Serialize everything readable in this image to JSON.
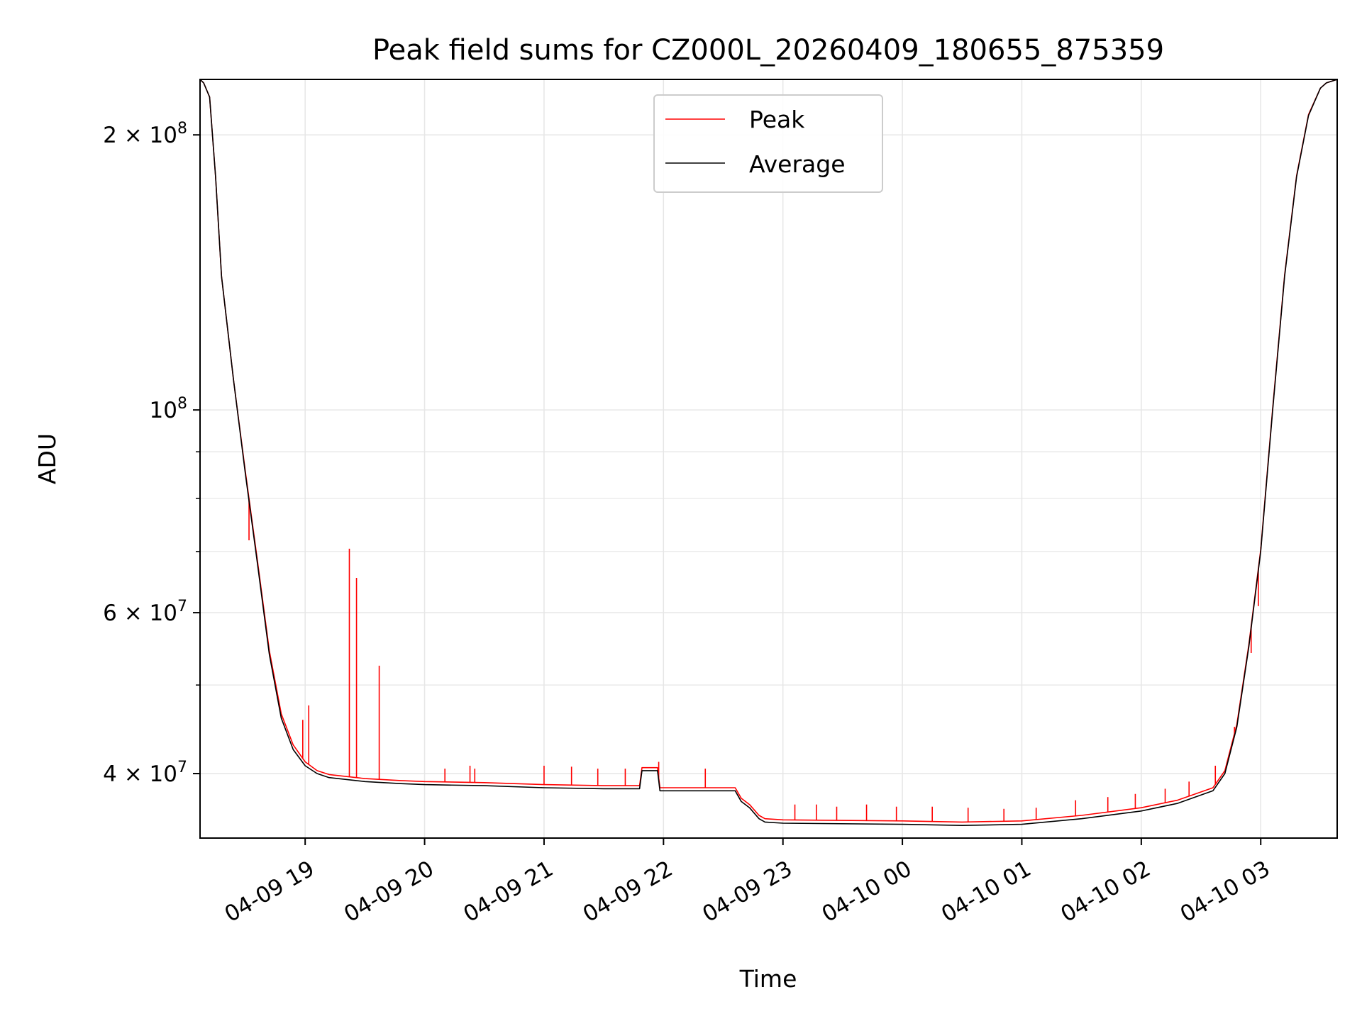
{
  "chart_data": {
    "type": "line",
    "title": "Peak field sums for CZ000L_20260409_180655_875359",
    "xlabel": "Time",
    "ylabel": "ADU",
    "yscale": "log",
    "grid": true,
    "legend_position": "top-center",
    "colors": {
      "Peak": "#ff0000",
      "Average": "#000000",
      "grid": "#e6e6e6"
    },
    "x_unit": "hours since 2026-04-09 18:00",
    "xlim": [
      0.12,
      9.64
    ],
    "ylim": [
      34000000,
      230000000
    ],
    "x_ticks": [
      {
        "value": 1,
        "label": "04-09 19"
      },
      {
        "value": 2,
        "label": "04-09 20"
      },
      {
        "value": 3,
        "label": "04-09 21"
      },
      {
        "value": 4,
        "label": "04-09 22"
      },
      {
        "value": 5,
        "label": "04-09 23"
      },
      {
        "value": 6,
        "label": "04-10 00"
      },
      {
        "value": 7,
        "label": "04-10 01"
      },
      {
        "value": 8,
        "label": "04-10 02"
      },
      {
        "value": 9,
        "label": "04-10 03"
      }
    ],
    "y_ticks": [
      {
        "value": 40000000,
        "base": "4 × 10",
        "exp": "7"
      },
      {
        "value": 60000000,
        "base": "6 × 10",
        "exp": "7"
      },
      {
        "value": 100000000,
        "base": "10",
        "exp": "8"
      },
      {
        "value": 200000000,
        "base": "2 × 10",
        "exp": "8"
      }
    ],
    "y_minor_ticks": [
      50000000,
      70000000,
      80000000,
      90000000
    ],
    "series": [
      {
        "name": "Average",
        "x": [
          0.12,
          0.15,
          0.2,
          0.25,
          0.3,
          0.4,
          0.5,
          0.6,
          0.7,
          0.8,
          0.9,
          1.0,
          1.1,
          1.2,
          1.5,
          1.8,
          2.0,
          2.5,
          3.0,
          3.5,
          3.8,
          3.82,
          3.95,
          3.97,
          4.5,
          4.6,
          4.65,
          4.72,
          4.8,
          4.85,
          5.0,
          6.0,
          6.5,
          7.0,
          7.5,
          8.0,
          8.3,
          8.6,
          8.7,
          8.8,
          8.9,
          9.0,
          9.1,
          9.2,
          9.3,
          9.4,
          9.5,
          9.55,
          9.64
        ],
        "values": [
          230000000,
          228000000,
          220000000,
          180000000,
          140000000,
          108000000,
          85000000,
          68000000,
          54000000,
          46000000,
          42500000,
          40800000,
          40000000,
          39600000,
          39200000,
          39000000,
          38900000,
          38800000,
          38600000,
          38500000,
          38500000,
          40300000,
          40300000,
          38300000,
          38300000,
          38300000,
          37300000,
          36700000,
          35700000,
          35400000,
          35300000,
          35200000,
          35100000,
          35200000,
          35700000,
          36400000,
          37100000,
          38300000,
          40000000,
          45000000,
          55000000,
          70000000,
          100000000,
          140000000,
          180000000,
          210000000,
          225000000,
          228000000,
          230000000
        ]
      },
      {
        "name": "Peak",
        "x": [
          0.12,
          0.15,
          0.2,
          0.25,
          0.3,
          0.4,
          0.5,
          0.6,
          0.7,
          0.8,
          0.9,
          1.0,
          1.1,
          1.2,
          1.5,
          1.8,
          2.0,
          2.5,
          3.0,
          3.5,
          3.8,
          3.82,
          3.95,
          3.97,
          4.5,
          4.6,
          4.65,
          4.72,
          4.8,
          4.85,
          5.0,
          6.0,
          6.5,
          7.0,
          7.5,
          8.0,
          8.3,
          8.6,
          8.7,
          8.8,
          8.9,
          9.0,
          9.1,
          9.2,
          9.3,
          9.4,
          9.5,
          9.55,
          9.64
        ],
        "values": [
          230000000,
          228000000,
          220000000,
          180000000,
          140000000,
          108000000,
          85500000,
          68500000,
          54500000,
          46500000,
          43000000,
          41200000,
          40300000,
          39900000,
          39500000,
          39300000,
          39200000,
          39100000,
          38900000,
          38800000,
          38800000,
          40600000,
          40600000,
          38600000,
          38600000,
          38600000,
          37600000,
          37000000,
          36000000,
          35700000,
          35600000,
          35500000,
          35400000,
          35500000,
          36000000,
          36700000,
          37400000,
          38600000,
          40300000,
          45300000,
          55300000,
          70300000,
          100500000,
          140500000,
          180500000,
          210500000,
          225000000,
          228000000,
          230000000
        ],
        "spikes": [
          {
            "x": 0.53,
            "value": 72000000
          },
          {
            "x": 0.98,
            "value": 45800000
          },
          {
            "x": 1.03,
            "value": 47500000
          },
          {
            "x": 1.37,
            "value": 70500000
          },
          {
            "x": 1.43,
            "value": 65500000
          },
          {
            "x": 1.62,
            "value": 52500000
          },
          {
            "x": 2.17,
            "value": 40500000
          },
          {
            "x": 2.38,
            "value": 40800000
          },
          {
            "x": 2.42,
            "value": 40500000
          },
          {
            "x": 3.0,
            "value": 40800000
          },
          {
            "x": 3.23,
            "value": 40700000
          },
          {
            "x": 3.45,
            "value": 40500000
          },
          {
            "x": 3.68,
            "value": 40500000
          },
          {
            "x": 3.96,
            "value": 41200000
          },
          {
            "x": 4.35,
            "value": 40500000
          },
          {
            "x": 5.1,
            "value": 37000000
          },
          {
            "x": 5.28,
            "value": 37000000
          },
          {
            "x": 5.45,
            "value": 36800000
          },
          {
            "x": 5.7,
            "value": 37000000
          },
          {
            "x": 5.95,
            "value": 36800000
          },
          {
            "x": 6.25,
            "value": 36800000
          },
          {
            "x": 6.55,
            "value": 36700000
          },
          {
            "x": 6.85,
            "value": 36600000
          },
          {
            "x": 7.12,
            "value": 36700000
          },
          {
            "x": 7.45,
            "value": 37400000
          },
          {
            "x": 7.72,
            "value": 37700000
          },
          {
            "x": 7.95,
            "value": 38000000
          },
          {
            "x": 8.2,
            "value": 38500000
          },
          {
            "x": 8.4,
            "value": 39200000
          },
          {
            "x": 8.62,
            "value": 40800000
          },
          {
            "x": 8.78,
            "value": 45000000
          },
          {
            "x": 8.83,
            "value": 47800000
          },
          {
            "x": 8.92,
            "value": 54200000
          },
          {
            "x": 8.98,
            "value": 61000000
          },
          {
            "x": 9.0,
            "value": 70800000
          }
        ]
      }
    ]
  }
}
